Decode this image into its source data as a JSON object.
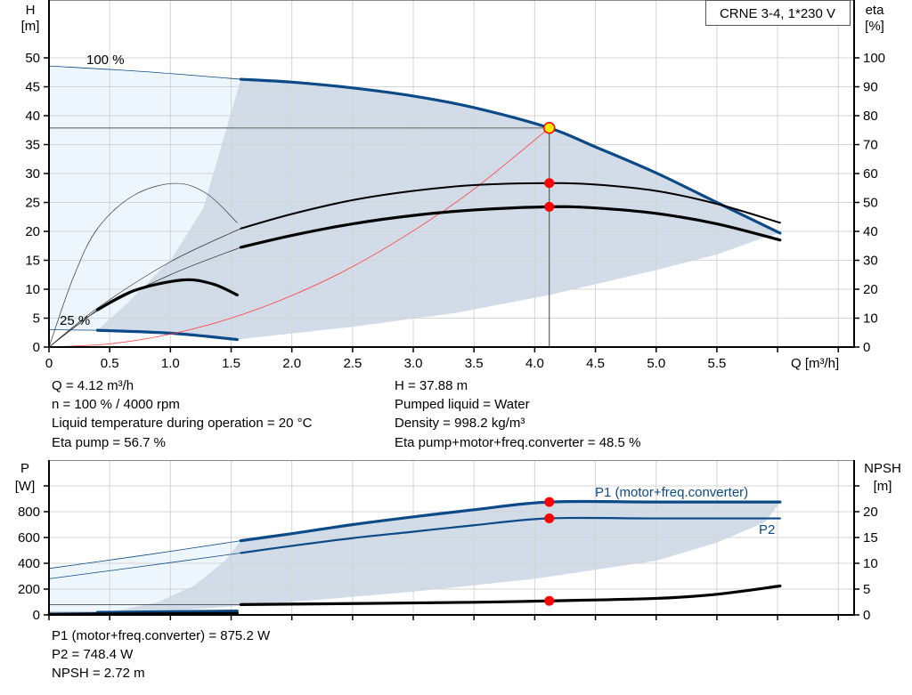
{
  "legend_box": {
    "title": "CRNE 3-4, 1*230 V"
  },
  "readouts": {
    "q": "Q = 4.12 m³/h",
    "n": "n = 100 % / 4000 rpm",
    "temp": "Liquid temperature during operation = 20 °C",
    "eta_pump": "Eta pump = 56.7 %",
    "h": "H = 37.88 m",
    "liquid": "Pumped liquid = Water",
    "density": "Density = 998.2 kg/m³",
    "eta_total": "Eta pump+motor+freq.converter = 48.5 %",
    "p1": "P1 (motor+freq.converter) = 875.2 W",
    "p2": "P2 = 748.4 W",
    "npsh": "NPSH = 2.72 m"
  },
  "colors": {
    "curve_blue": "#0b4a86",
    "shade_dark": "#d1dce8",
    "shade_light": "#eef6fd",
    "duty_point": "#ff0000",
    "duty_point_fill": "#ffee00",
    "system_curve": "#ff4040",
    "grid": "#d4d4d4"
  },
  "chart_data": [
    {
      "type": "line",
      "xlabel": "Q [m³/h]",
      "ylabel": [
        "H",
        "[m]"
      ],
      "y2label": [
        "eta",
        "[%]"
      ],
      "xlim": [
        0,
        6.63
      ],
      "ylim": [
        0,
        60
      ],
      "y2lim": [
        0,
        120
      ],
      "xticks": [
        0,
        0.5,
        1.0,
        1.5,
        2.0,
        2.5,
        3.0,
        3.5,
        4.0,
        4.5,
        5.0,
        5.5,
        6.0,
        6.5
      ],
      "xtick_labels": [
        "0",
        "0.5",
        "1.0",
        "1.5",
        "2.0",
        "2.5",
        "3.0",
        "3.5",
        "4.0",
        "4.5",
        "5.0",
        "5.5",
        "",
        ""
      ],
      "yticks": [
        0,
        5,
        10,
        15,
        20,
        25,
        30,
        35,
        40,
        45,
        50
      ],
      "y2ticks": [
        0,
        10,
        20,
        30,
        40,
        50,
        60,
        70,
        80,
        90,
        100
      ],
      "grid": true,
      "annotations": [
        {
          "text": "100 %",
          "x": 0.3,
          "y": 49.5
        },
        {
          "text": "25 %",
          "x": 0.1,
          "y": 3.8
        }
      ],
      "duty_point": {
        "q": 4.12,
        "h": 37.88,
        "eta_pump": 56.7,
        "eta_total": 48.5
      },
      "series": [
        {
          "id": "h100-ext",
          "axis": "H",
          "style": "blue-thin",
          "x": [
            0,
            0.8,
            1.58
          ],
          "y": [
            48.6,
            47.6,
            46.3
          ]
        },
        {
          "id": "h100",
          "axis": "H",
          "style": "blue-thick",
          "x": [
            1.58,
            2.0,
            2.5,
            3.0,
            3.5,
            4.12,
            4.5,
            5.0,
            5.5,
            6.02
          ],
          "y": [
            46.3,
            45.8,
            44.8,
            43.4,
            41.4,
            37.88,
            34.6,
            30.1,
            25.0,
            19.7
          ]
        },
        {
          "id": "h25-ext",
          "axis": "H",
          "style": "blue-thin",
          "x": [
            0,
            0.4
          ],
          "y": [
            3.0,
            2.9
          ]
        },
        {
          "id": "h25",
          "axis": "H",
          "style": "blue-thick",
          "x": [
            0.4,
            1.0,
            1.55
          ],
          "y": [
            2.9,
            2.4,
            1.3
          ]
        },
        {
          "id": "system",
          "axis": "H",
          "style": "red-thin",
          "x": [
            0,
            0.5,
            1.0,
            1.5,
            2.0,
            2.5,
            3.0,
            3.5,
            4.12
          ],
          "y": [
            0,
            0.56,
            2.23,
            5.0,
            8.9,
            13.9,
            20.1,
            27.3,
            37.88
          ]
        },
        {
          "id": "eta-pump-ext",
          "axis": "eta",
          "style": "black-hair",
          "x": [
            0,
            0.4,
            1.0,
            1.58
          ],
          "y": [
            0,
            13.5,
            29.5,
            41.0
          ]
        },
        {
          "id": "eta-pump",
          "axis": "eta",
          "style": "black-med",
          "x": [
            1.58,
            2.0,
            2.5,
            3.0,
            3.5,
            4.12,
            4.5,
            5.0,
            5.5,
            6.02
          ],
          "y": [
            41.0,
            46.0,
            50.8,
            54.0,
            56.0,
            56.7,
            56.2,
            54.0,
            49.5,
            43.0
          ]
        },
        {
          "id": "eta-total-ext",
          "axis": "eta",
          "style": "black-hair",
          "x": [
            0,
            0.4,
            1.0,
            1.58
          ],
          "y": [
            0,
            12.5,
            25.0,
            34.5
          ]
        },
        {
          "id": "eta-total",
          "axis": "eta",
          "style": "black-thick",
          "x": [
            1.58,
            2.0,
            2.5,
            3.0,
            3.5,
            4.12,
            4.5,
            5.0,
            5.5,
            6.02
          ],
          "y": [
            34.5,
            38.6,
            42.6,
            45.5,
            47.4,
            48.5,
            48.1,
            46.2,
            42.6,
            37.0
          ]
        },
        {
          "id": "eta-pump-25",
          "axis": "eta",
          "style": "black-hair",
          "x": [
            0,
            0.2,
            0.4,
            0.7,
            1.04,
            1.3,
            1.55
          ],
          "y": [
            0,
            24,
            41,
            52.5,
            56.6,
            53,
            43
          ]
        },
        {
          "id": "eta-total-25-ext",
          "axis": "eta",
          "style": "black-hair",
          "x": [
            0,
            0.2,
            0.4
          ],
          "y": [
            0,
            6.5,
            12.9
          ]
        },
        {
          "id": "eta-total-25",
          "axis": "eta",
          "style": "black-thick",
          "x": [
            0.4,
            0.7,
            1.1,
            1.35,
            1.55
          ],
          "y": [
            12.9,
            19.5,
            23.2,
            21.8,
            18.0
          ]
        }
      ],
      "bands": {
        "light": {
          "x": [
            0,
            0.8,
            1.58,
            1.45,
            1.27,
            1.01,
            0.65,
            0.4,
            0
          ],
          "y": [
            48.6,
            47.6,
            46.3,
            37,
            24,
            15.3,
            7.7,
            2.9,
            3.0
          ]
        },
        "dark": {
          "x": [
            0.4,
            0.65,
            1.01,
            1.27,
            1.45,
            1.58,
            2.0,
            2.5,
            3.0,
            3.5,
            4.12,
            4.5,
            5.0,
            5.5,
            6.02,
            5.9,
            5.5,
            5.0,
            4.12,
            3.35,
            2.5,
            1.55,
            1.0,
            0.4
          ],
          "y": [
            2.9,
            7.7,
            15.3,
            24,
            37,
            46.3,
            45.8,
            44.8,
            43.4,
            41.4,
            37.88,
            34.6,
            30.1,
            25.0,
            19.7,
            19.0,
            16.0,
            13.3,
            9.0,
            5.9,
            3.5,
            1.3,
            2.4,
            2.9
          ]
        }
      }
    },
    {
      "type": "line",
      "ylabel": [
        "P",
        "[W]"
      ],
      "y2label": [
        "NPSH",
        "[m]"
      ],
      "xlim": [
        0,
        6.63
      ],
      "ylim": [
        0,
        1200
      ],
      "y2lim": [
        0,
        30
      ],
      "xticks": [
        0,
        0.5,
        1.0,
        1.5,
        2.0,
        2.5,
        3.0,
        3.5,
        4.0,
        4.5,
        5.0,
        5.5,
        6.0,
        6.5
      ],
      "yticks": [
        0,
        200,
        400,
        600,
        800,
        1000
      ],
      "ytick_labels": [
        "0",
        "200",
        "400",
        "600",
        "800",
        ""
      ],
      "y2ticks": [
        0,
        5,
        10,
        15,
        20,
        25
      ],
      "y2tick_labels": [
        "0",
        "5",
        "10",
        "15",
        "20",
        ""
      ],
      "grid": true,
      "series_labels": [
        {
          "text": "P1 (motor+freq.converter)",
          "x": 4.5,
          "y": 910
        },
        {
          "text": "P2",
          "x": 5.85,
          "y": 640
        }
      ],
      "duty_point": {
        "q": 4.12,
        "p1": 875.2,
        "p2": 748.4,
        "npsh": 2.72
      },
      "series": [
        {
          "id": "p1-ext",
          "axis": "P",
          "style": "blue-thin",
          "x": [
            0,
            0.8,
            1.58
          ],
          "y": [
            360,
            465,
            575
          ]
        },
        {
          "id": "p1",
          "name": "P1 (motor+freq.converter)",
          "axis": "P",
          "style": "blue-thick",
          "x": [
            1.58,
            2.0,
            2.5,
            3.0,
            3.5,
            4.12,
            5.0,
            6.02
          ],
          "y": [
            575,
            630,
            700,
            760,
            815,
            875.2,
            875,
            875
          ]
        },
        {
          "id": "p2-ext",
          "axis": "P",
          "style": "blue-thin",
          "x": [
            0,
            0.8,
            1.58
          ],
          "y": [
            280,
            380,
            480
          ]
        },
        {
          "id": "p2",
          "name": "P2",
          "axis": "P",
          "style": "blue-med",
          "x": [
            1.58,
            2.0,
            2.5,
            3.0,
            3.5,
            4.12,
            5.0,
            6.02
          ],
          "y": [
            480,
            535,
            595,
            645,
            695,
            748.4,
            748,
            748
          ]
        },
        {
          "id": "p-25-ext",
          "axis": "P",
          "style": "blue-thin",
          "x": [
            0,
            0.4
          ],
          "y": [
            20,
            20
          ]
        },
        {
          "id": "p-25",
          "axis": "P",
          "style": "blue-thick",
          "x": [
            0.4,
            1.55
          ],
          "y": [
            20,
            30
          ]
        },
        {
          "id": "npsh-ext",
          "axis": "NPSH",
          "style": "black-hair",
          "x": [
            0,
            1.58
          ],
          "y": [
            2.0,
            2.0
          ]
        },
        {
          "id": "npsh",
          "axis": "NPSH",
          "style": "black-thick",
          "x": [
            1.58,
            2.5,
            3.5,
            4.12,
            5.0,
            5.5,
            6.02
          ],
          "y": [
            2.0,
            2.2,
            2.45,
            2.72,
            3.2,
            4.0,
            5.6
          ]
        },
        {
          "id": "npsh-25",
          "axis": "NPSH",
          "style": "black-thick",
          "x": [
            0,
            0.4,
            1.55
          ],
          "y": [
            0.1,
            0.15,
            0.3
          ]
        }
      ],
      "bands": {
        "light": {
          "x": [
            0,
            0.8,
            1.58,
            1.45,
            1.2,
            0.9,
            0.4,
            0
          ],
          "y": [
            360,
            465,
            575,
            420,
            230,
            100,
            0,
            0
          ]
        },
        "dark": {
          "x": [
            0.4,
            0.9,
            1.2,
            1.45,
            1.58,
            2.0,
            2.5,
            3.0,
            3.5,
            4.12,
            5.0,
            6.02,
            5.9,
            5.5,
            5.0,
            4.0,
            3.0,
            2.0,
            1.0,
            0.4
          ],
          "y": [
            0,
            100,
            230,
            420,
            575,
            630,
            700,
            760,
            815,
            875.2,
            875,
            875,
            720,
            560,
            420,
            280,
            180,
            100,
            30,
            0
          ]
        }
      }
    }
  ]
}
